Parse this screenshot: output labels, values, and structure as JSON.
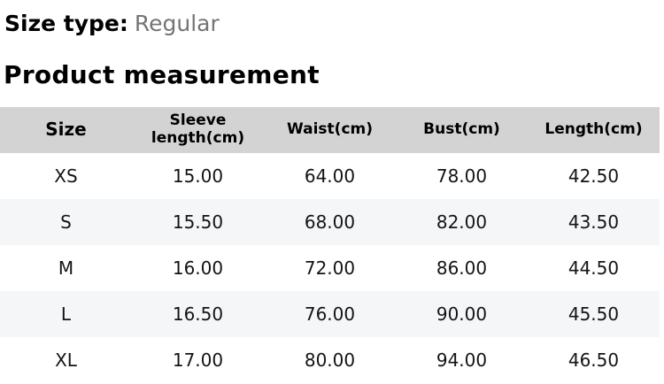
{
  "size_type": {
    "label": "Size type:",
    "value": "Regular"
  },
  "section_title": "Product measurement",
  "table": {
    "columns": [
      "Size",
      "Sleeve length(cm)",
      "Waist(cm)",
      "Bust(cm)",
      "Length(cm)"
    ],
    "rows": [
      [
        "XS",
        "15.00",
        "64.00",
        "78.00",
        "42.50"
      ],
      [
        "S",
        "15.50",
        "68.00",
        "82.00",
        "43.50"
      ],
      [
        "M",
        "16.00",
        "72.00",
        "86.00",
        "44.50"
      ],
      [
        "L",
        "16.50",
        "76.00",
        "90.00",
        "45.50"
      ],
      [
        "XL",
        "17.00",
        "80.00",
        "94.00",
        "46.50"
      ]
    ]
  },
  "colors": {
    "header_row_bg": "#d3d3d3",
    "stripe_row_bg": "#f5f6f7",
    "muted_text": "#757575"
  }
}
